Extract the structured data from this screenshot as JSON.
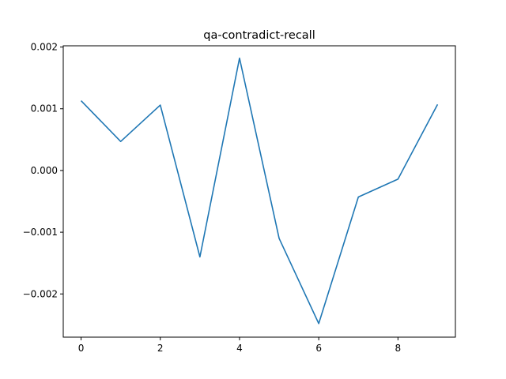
{
  "chart_data": {
    "type": "line",
    "title": "qa-contradict-recall",
    "xlabel": "",
    "ylabel": "",
    "x": [
      0,
      1,
      2,
      3,
      4,
      5,
      6,
      7,
      8,
      9
    ],
    "series": [
      {
        "color": "#1f77b4",
        "values": [
          0.00113,
          0.00047,
          0.00106,
          -0.0014,
          0.00182,
          -0.0011,
          -0.00248,
          -0.00043,
          -0.00014,
          0.00107
        ]
      }
    ],
    "xlim": [
      -0.45,
      9.45
    ],
    "ylim": [
      -0.0027,
      0.00202
    ],
    "xticks": [
      0,
      2,
      4,
      6,
      8
    ],
    "xtick_labels": [
      "0",
      "2",
      "4",
      "6",
      "8"
    ],
    "yticks": [
      0.002,
      0.001,
      0.0,
      -0.001,
      -0.002
    ],
    "ytick_labels": [
      "0.002",
      "0.001",
      "0.000",
      "−0.001",
      "−0.002"
    ],
    "grid": false,
    "legend": "none"
  }
}
